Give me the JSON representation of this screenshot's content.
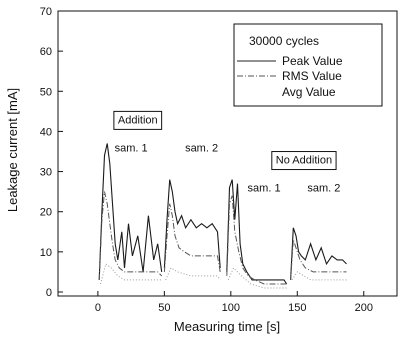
{
  "chart_data": {
    "type": "line",
    "xlabel": "Measuring time [s]",
    "ylabel": "Leakage current [mA]",
    "xlim": [
      -30,
      225
    ],
    "ylim": [
      -1,
      70
    ],
    "x_ticks": [
      0,
      50,
      100,
      150,
      200
    ],
    "y_ticks": [
      0,
      10,
      20,
      30,
      40,
      50,
      60,
      70
    ],
    "grid": false,
    "legend": {
      "title": "30000 cycles",
      "placement": "top-right",
      "entries": [
        {
          "name": "Peak Value",
          "style": "solid"
        },
        {
          "name": "RMS Value",
          "style": "dash-dot"
        },
        {
          "name": "Avg Value",
          "style": "none"
        }
      ]
    },
    "annotations": [
      {
        "text": "Addition",
        "boxed": true,
        "x": 30,
        "y": 42
      },
      {
        "text": "sam. 1",
        "boxed": false,
        "x": 25,
        "y": 35
      },
      {
        "text": "sam. 2",
        "boxed": false,
        "x": 78,
        "y": 35
      },
      {
        "text": "No Addition",
        "boxed": true,
        "x": 155,
        "y": 32
      },
      {
        "text": "sam. 1",
        "boxed": false,
        "x": 125,
        "y": 25
      },
      {
        "text": "sam. 2",
        "boxed": false,
        "x": 170,
        "y": 25
      }
    ],
    "series": [
      {
        "style": "peak",
        "segments": [
          {
            "x": [
              1,
              3,
              5,
              7,
              9,
              11,
              13,
              15,
              18,
              20,
              23,
              26,
              30,
              34,
              38,
              42,
              45,
              48
            ],
            "y": [
              3,
              20,
              34,
              37,
              32,
              22,
              12,
              8,
              15,
              6,
              17,
              9,
              14,
              5,
              19,
              8,
              12,
              5
            ]
          },
          {
            "x": [
              50,
              52,
              54,
              56,
              58,
              60,
              63,
              66,
              70,
              74,
              78,
              82,
              86,
              90,
              92
            ],
            "y": [
              6,
              18,
              28,
              25,
              20,
              17,
              19,
              16,
              18,
              16,
              17,
              16,
              17,
              15,
              6
            ]
          },
          {
            "x": [
              97,
              99,
              101,
              103,
              105,
              107,
              109,
              112,
              116,
              120,
              125,
              130,
              135,
              140,
              142
            ],
            "y": [
              5,
              26,
              28,
              18,
              27,
              12,
              7,
              5,
              3,
              3,
              3,
              3,
              3,
              3,
              2
            ]
          },
          {
            "x": [
              145,
              147,
              149,
              151,
              153,
              156,
              160,
              164,
              168,
              172,
              176,
              180,
              184,
              187
            ],
            "y": [
              3,
              16,
              14,
              10,
              9,
              8,
              12,
              8,
              11,
              7,
              9,
              8,
              8,
              7
            ]
          }
        ]
      },
      {
        "style": "rms",
        "segments": [
          {
            "x": [
              1,
              3,
              5,
              7,
              9,
              11,
              13,
              16,
              20,
              25,
              30,
              35,
              40,
              45,
              48
            ],
            "y": [
              3,
              18,
              25,
              22,
              17,
              12,
              8,
              6,
              5,
              5,
              5,
              5,
              5,
              5,
              4
            ]
          },
          {
            "x": [
              50,
              52,
              54,
              56,
              58,
              61,
              65,
              70,
              75,
              80,
              85,
              90,
              92
            ],
            "y": [
              5,
              14,
              22,
              19,
              14,
              11,
              10,
              9,
              9,
              9,
              9,
              9,
              5
            ]
          },
          {
            "x": [
              97,
              99,
              101,
              103,
              106,
              109,
              113,
              118,
              125,
              132,
              140,
              142
            ],
            "y": [
              4,
              22,
              24,
              15,
              10,
              6,
              4,
              3,
              2,
              2,
              2,
              2
            ]
          },
          {
            "x": [
              145,
              147,
              149,
              152,
              156,
              162,
              168,
              175,
              182,
              187
            ],
            "y": [
              3,
              13,
              11,
              8,
              6,
              5,
              5,
              5,
              5,
              5
            ]
          }
        ]
      },
      {
        "style": "avg",
        "segments": [
          {
            "x": [
              2,
              6,
              10,
              15,
              20,
              30,
              40,
              48
            ],
            "y": [
              2,
              7,
              6,
              4,
              3,
              3,
              3,
              3
            ]
          },
          {
            "x": [
              51,
              55,
              60,
              70,
              80,
              90,
              92
            ],
            "y": [
              3,
              6,
              5,
              4,
              4,
              4,
              3
            ]
          },
          {
            "x": [
              98,
              102,
              108,
              115,
              125,
              140,
              142
            ],
            "y": [
              3,
              6,
              4,
              2,
              1,
              1,
              1
            ]
          },
          {
            "x": [
              146,
              150,
              160,
              170,
              180,
              187
            ],
            "y": [
              3,
              5,
              3,
              3,
              3,
              3
            ]
          }
        ]
      }
    ]
  }
}
